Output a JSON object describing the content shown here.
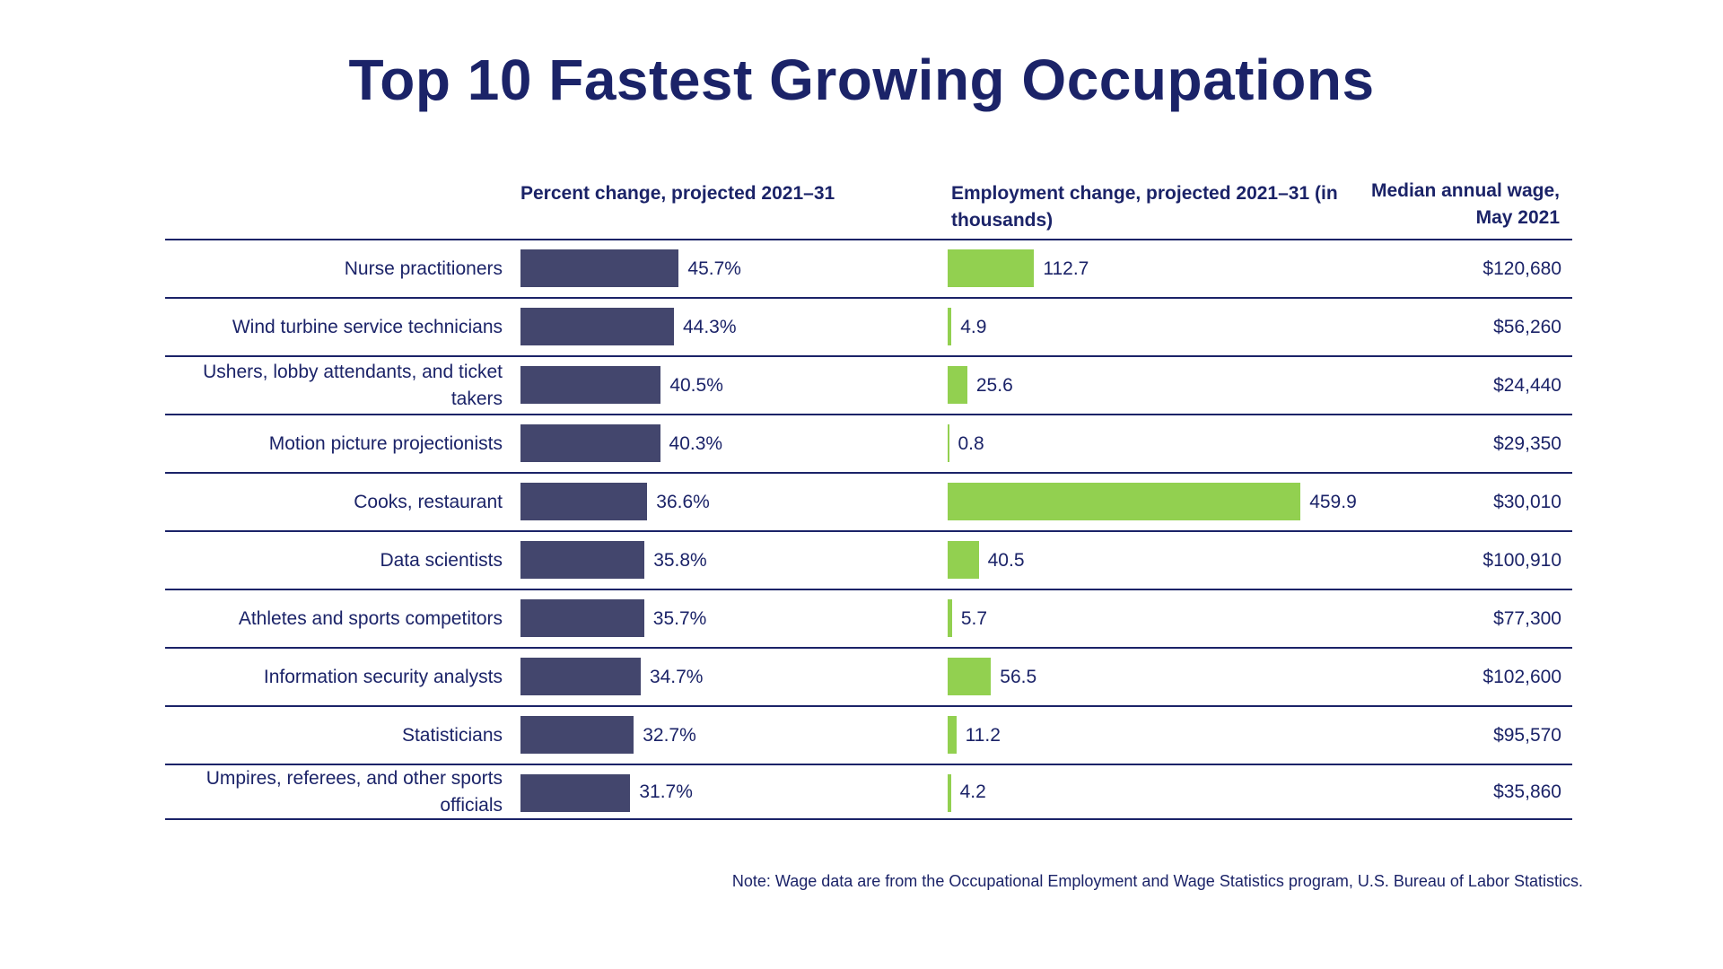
{
  "title": "Top 10 Fastest Growing Occupations",
  "headers": {
    "pct": "Percent change, projected 2021–31",
    "emp": "Employment change, projected 2021–31 (in thousands)",
    "wage": "Median annual wage, May 2021"
  },
  "note": "Note: Wage data are from the Occupational Employment and Wage Statistics program, U.S. Bureau of Labor Statistics.",
  "colors": {
    "pct_bar": "#43466d",
    "emp_bar": "#92d050",
    "text": "#1b2368"
  },
  "chart_data": {
    "type": "bar",
    "categories": [
      "Nurse practitioners",
      "Wind turbine service technicians",
      "Ushers, lobby attendants, and ticket takers",
      "Motion picture projectionists",
      "Cooks, restaurant",
      "Data scientists",
      "Athletes and sports competitors",
      "Information security analysts",
      "Statisticians",
      "Umpires, referees, and other sports officials"
    ],
    "series": [
      {
        "name": "Percent change, projected 2021–31",
        "values": [
          45.7,
          44.3,
          40.5,
          40.3,
          36.6,
          35.8,
          35.7,
          34.7,
          32.7,
          31.7
        ],
        "labels": [
          "45.7%",
          "44.3%",
          "40.5%",
          "40.3%",
          "36.6%",
          "35.8%",
          "35.7%",
          "34.7%",
          "32.7%",
          "31.7%"
        ]
      },
      {
        "name": "Employment change, projected 2021–31 (in thousands)",
        "values": [
          112.7,
          4.9,
          25.6,
          0.8,
          459.9,
          40.5,
          5.7,
          56.5,
          11.2,
          4.2
        ],
        "labels": [
          "112.7",
          "4.9",
          "25.6",
          "0.8",
          "459.9",
          "40.5",
          "5.7",
          "56.5",
          "11.2",
          "4.2"
        ]
      }
    ],
    "wages": [
      "$120,680",
      "$56,260",
      "$24,440",
      "$29,350",
      "$30,010",
      "$100,910",
      "$77,300",
      "$102,600",
      "$95,570",
      "$35,860"
    ]
  }
}
